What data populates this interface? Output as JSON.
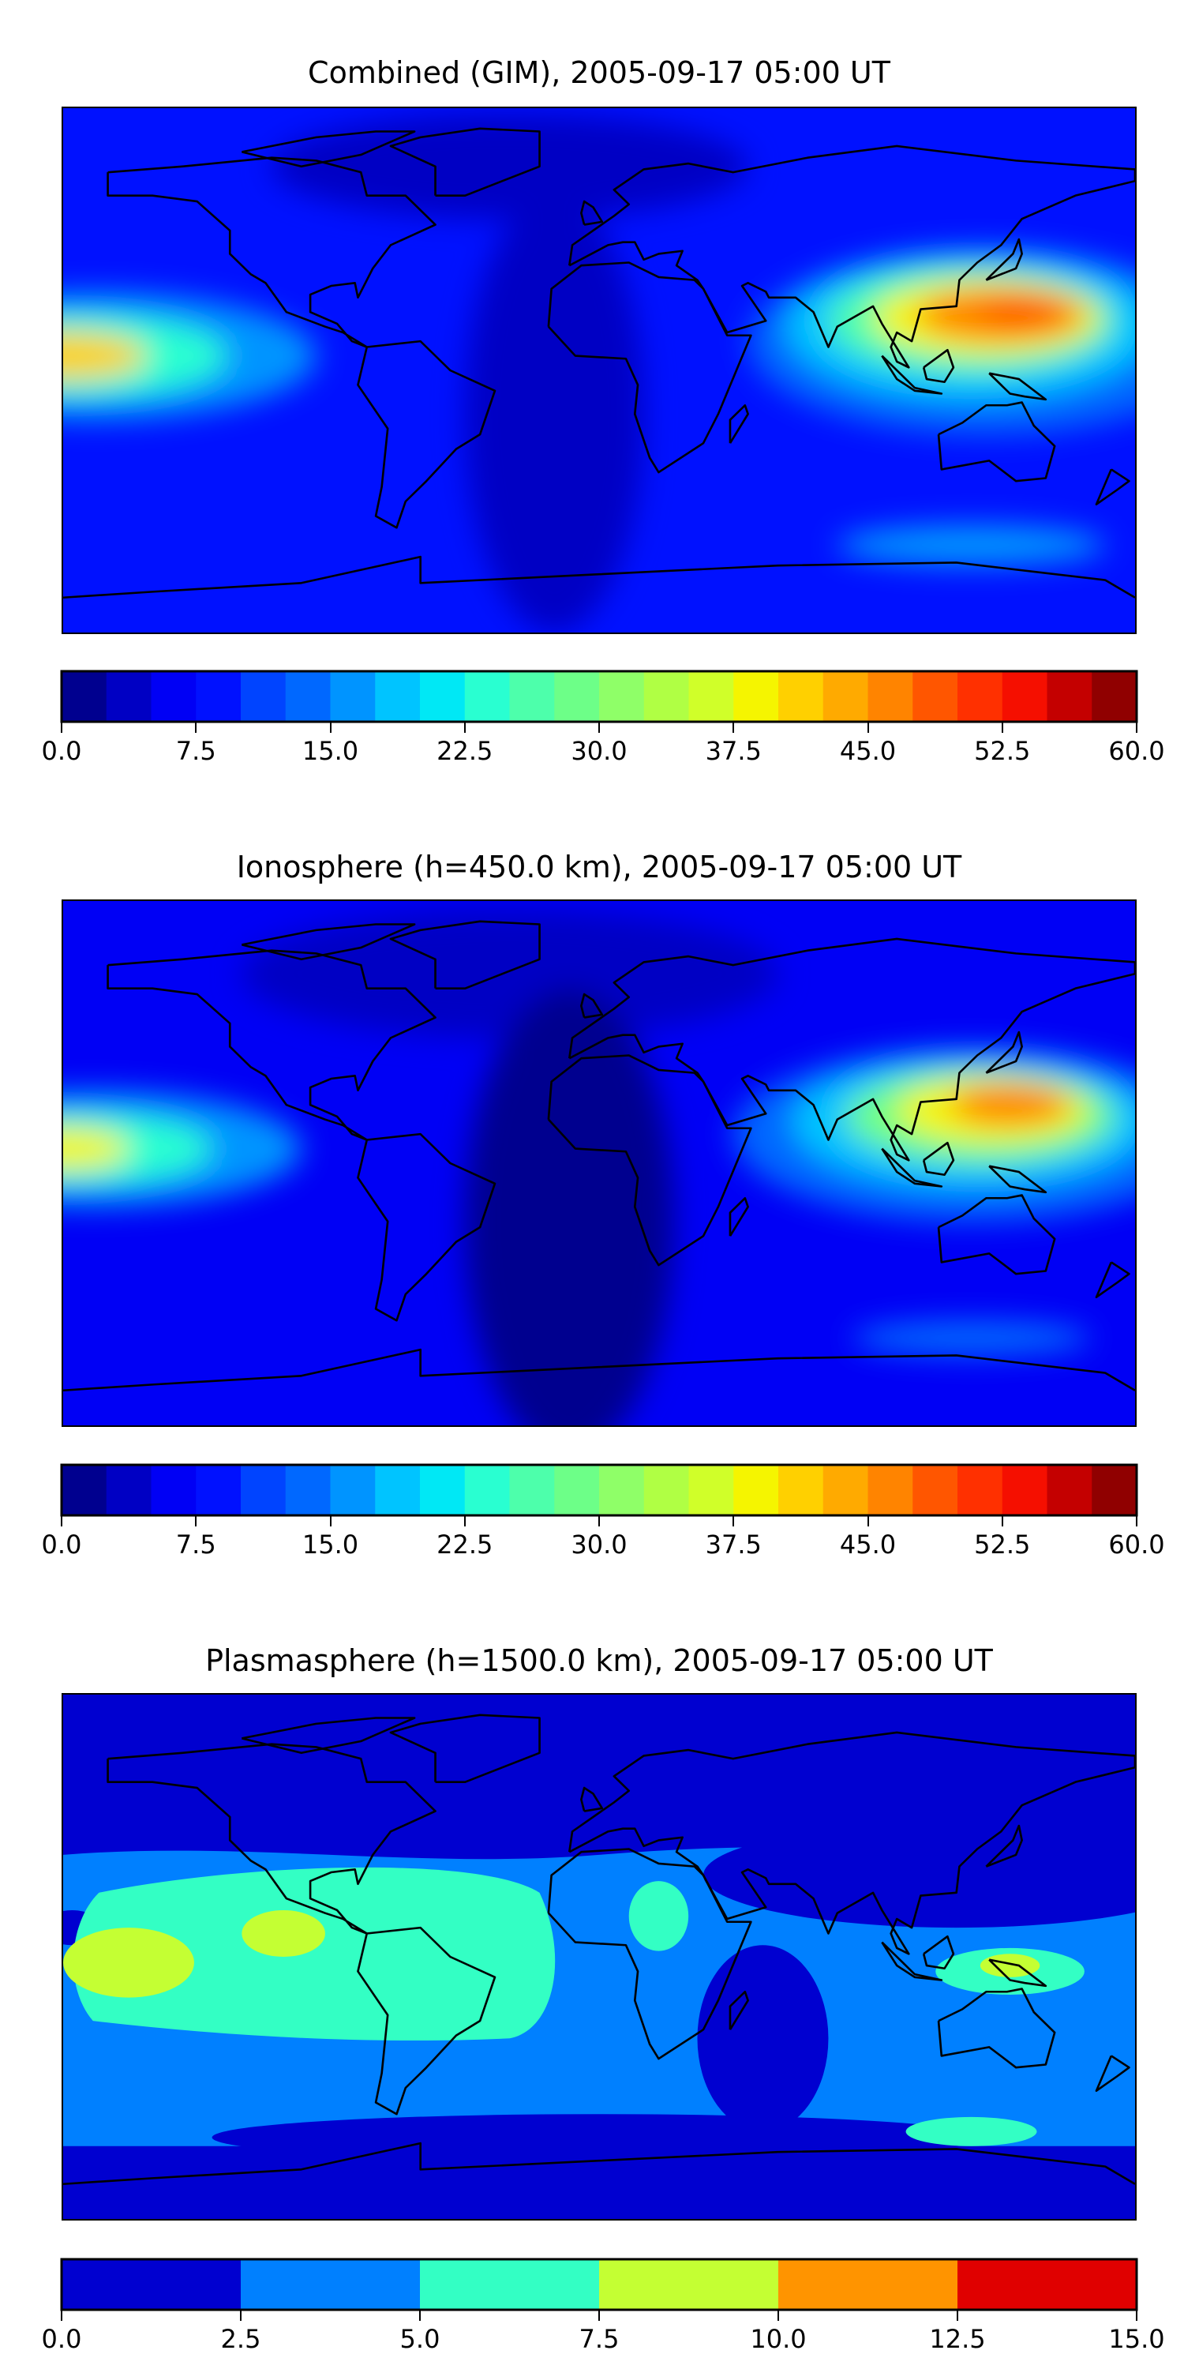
{
  "chart_data": [
    {
      "type": "heatmap",
      "title": "Combined (GIM), 2005-09-17 05:00 UT",
      "projection": "plate carree, global, coastlines",
      "colorbar": {
        "levels": [
          0,
          2.5,
          5,
          7.5,
          10,
          12.5,
          15,
          17.5,
          20,
          22.5,
          25,
          27.5,
          30,
          32.5,
          35,
          37.5,
          40,
          42.5,
          45,
          47.5,
          50,
          52.5,
          55,
          57.5,
          60
        ],
        "tick_labels": [
          "0.0",
          "7.5",
          "15.0",
          "22.5",
          "30.0",
          "37.5",
          "45.0",
          "52.5",
          "60.0"
        ],
        "ticks": [
          0,
          7.5,
          15,
          22.5,
          30,
          37.5,
          45,
          52.5,
          60
        ],
        "range": [
          0,
          60
        ],
        "colors": [
          "#00008f",
          "#0000c4",
          "#0000f5",
          "#0011ff",
          "#0044ff",
          "#0068ff",
          "#0094ff",
          "#00c4ff",
          "#00e8f5",
          "#29ffd1",
          "#4dffab",
          "#6dff88",
          "#8fff68",
          "#b0ff44",
          "#d0ff29",
          "#f5f500",
          "#ffd000",
          "#ffaa00",
          "#ff8400",
          "#ff5600",
          "#ff3000",
          "#f50f00",
          "#c40000",
          "#900000"
        ]
      },
      "features": {
        "peak_region": "East Asia / Western Pacific, ~lat 15N",
        "peak_value_approx": 50,
        "secondary_peak": "Central Pacific near dateline, ~lat 5N",
        "secondary_value_approx": 40,
        "background_approx": 7.5
      }
    },
    {
      "type": "heatmap",
      "title": "Ionosphere  (h=450.0 km), 2005-09-17 05:00 UT",
      "projection": "plate carree, global, coastlines",
      "colorbar": {
        "levels": [
          0,
          2.5,
          5,
          7.5,
          10,
          12.5,
          15,
          17.5,
          20,
          22.5,
          25,
          27.5,
          30,
          32.5,
          35,
          37.5,
          40,
          42.5,
          45,
          47.5,
          50,
          52.5,
          55,
          57.5,
          60
        ],
        "tick_labels": [
          "0.0",
          "7.5",
          "15.0",
          "22.5",
          "30.0",
          "37.5",
          "45.0",
          "52.5",
          "60.0"
        ],
        "ticks": [
          0,
          7.5,
          15,
          22.5,
          30,
          37.5,
          45,
          52.5,
          60
        ],
        "range": [
          0,
          60
        ],
        "colors": [
          "#00008f",
          "#0000c4",
          "#0000f5",
          "#0011ff",
          "#0044ff",
          "#0068ff",
          "#0094ff",
          "#00c4ff",
          "#00e8f5",
          "#29ffd1",
          "#4dffab",
          "#6dff88",
          "#8fff68",
          "#b0ff44",
          "#d0ff29",
          "#f5f500",
          "#ffd000",
          "#ffaa00",
          "#ff8400",
          "#ff5600",
          "#ff3000",
          "#f50f00",
          "#c40000",
          "#900000"
        ]
      },
      "features": {
        "peak_region": "East Asia / Western Pacific",
        "peak_value_approx": 47.5,
        "secondary_peak": "Central Pacific near dateline",
        "secondary_value_approx": 37.5,
        "background_approx": 5
      }
    },
    {
      "type": "heatmap",
      "title": "Plasmasphere (h=1500.0 km), 2005-09-17 05:00 UT",
      "projection": "plate carree, global, coastlines",
      "colorbar": {
        "levels": [
          0,
          2.5,
          5,
          7.5,
          10,
          12.5,
          15
        ],
        "tick_labels": [
          "0.0",
          "2.5",
          "5.0",
          "7.5",
          "10.0",
          "12.5",
          "15.0"
        ],
        "ticks": [
          0,
          2.5,
          5,
          7.5,
          10,
          12.5,
          15
        ],
        "range": [
          0,
          15
        ],
        "colors": [
          "#0000d0",
          "#0080ff",
          "#33ffc4",
          "#c4ff33",
          "#ff9400",
          "#e00000"
        ]
      },
      "features": {
        "max_band": "7.5-10 over Pacific and New Guinea",
        "low_lat_band": "2.5-7.5",
        "high_lat_band": "0-2.5"
      }
    }
  ]
}
